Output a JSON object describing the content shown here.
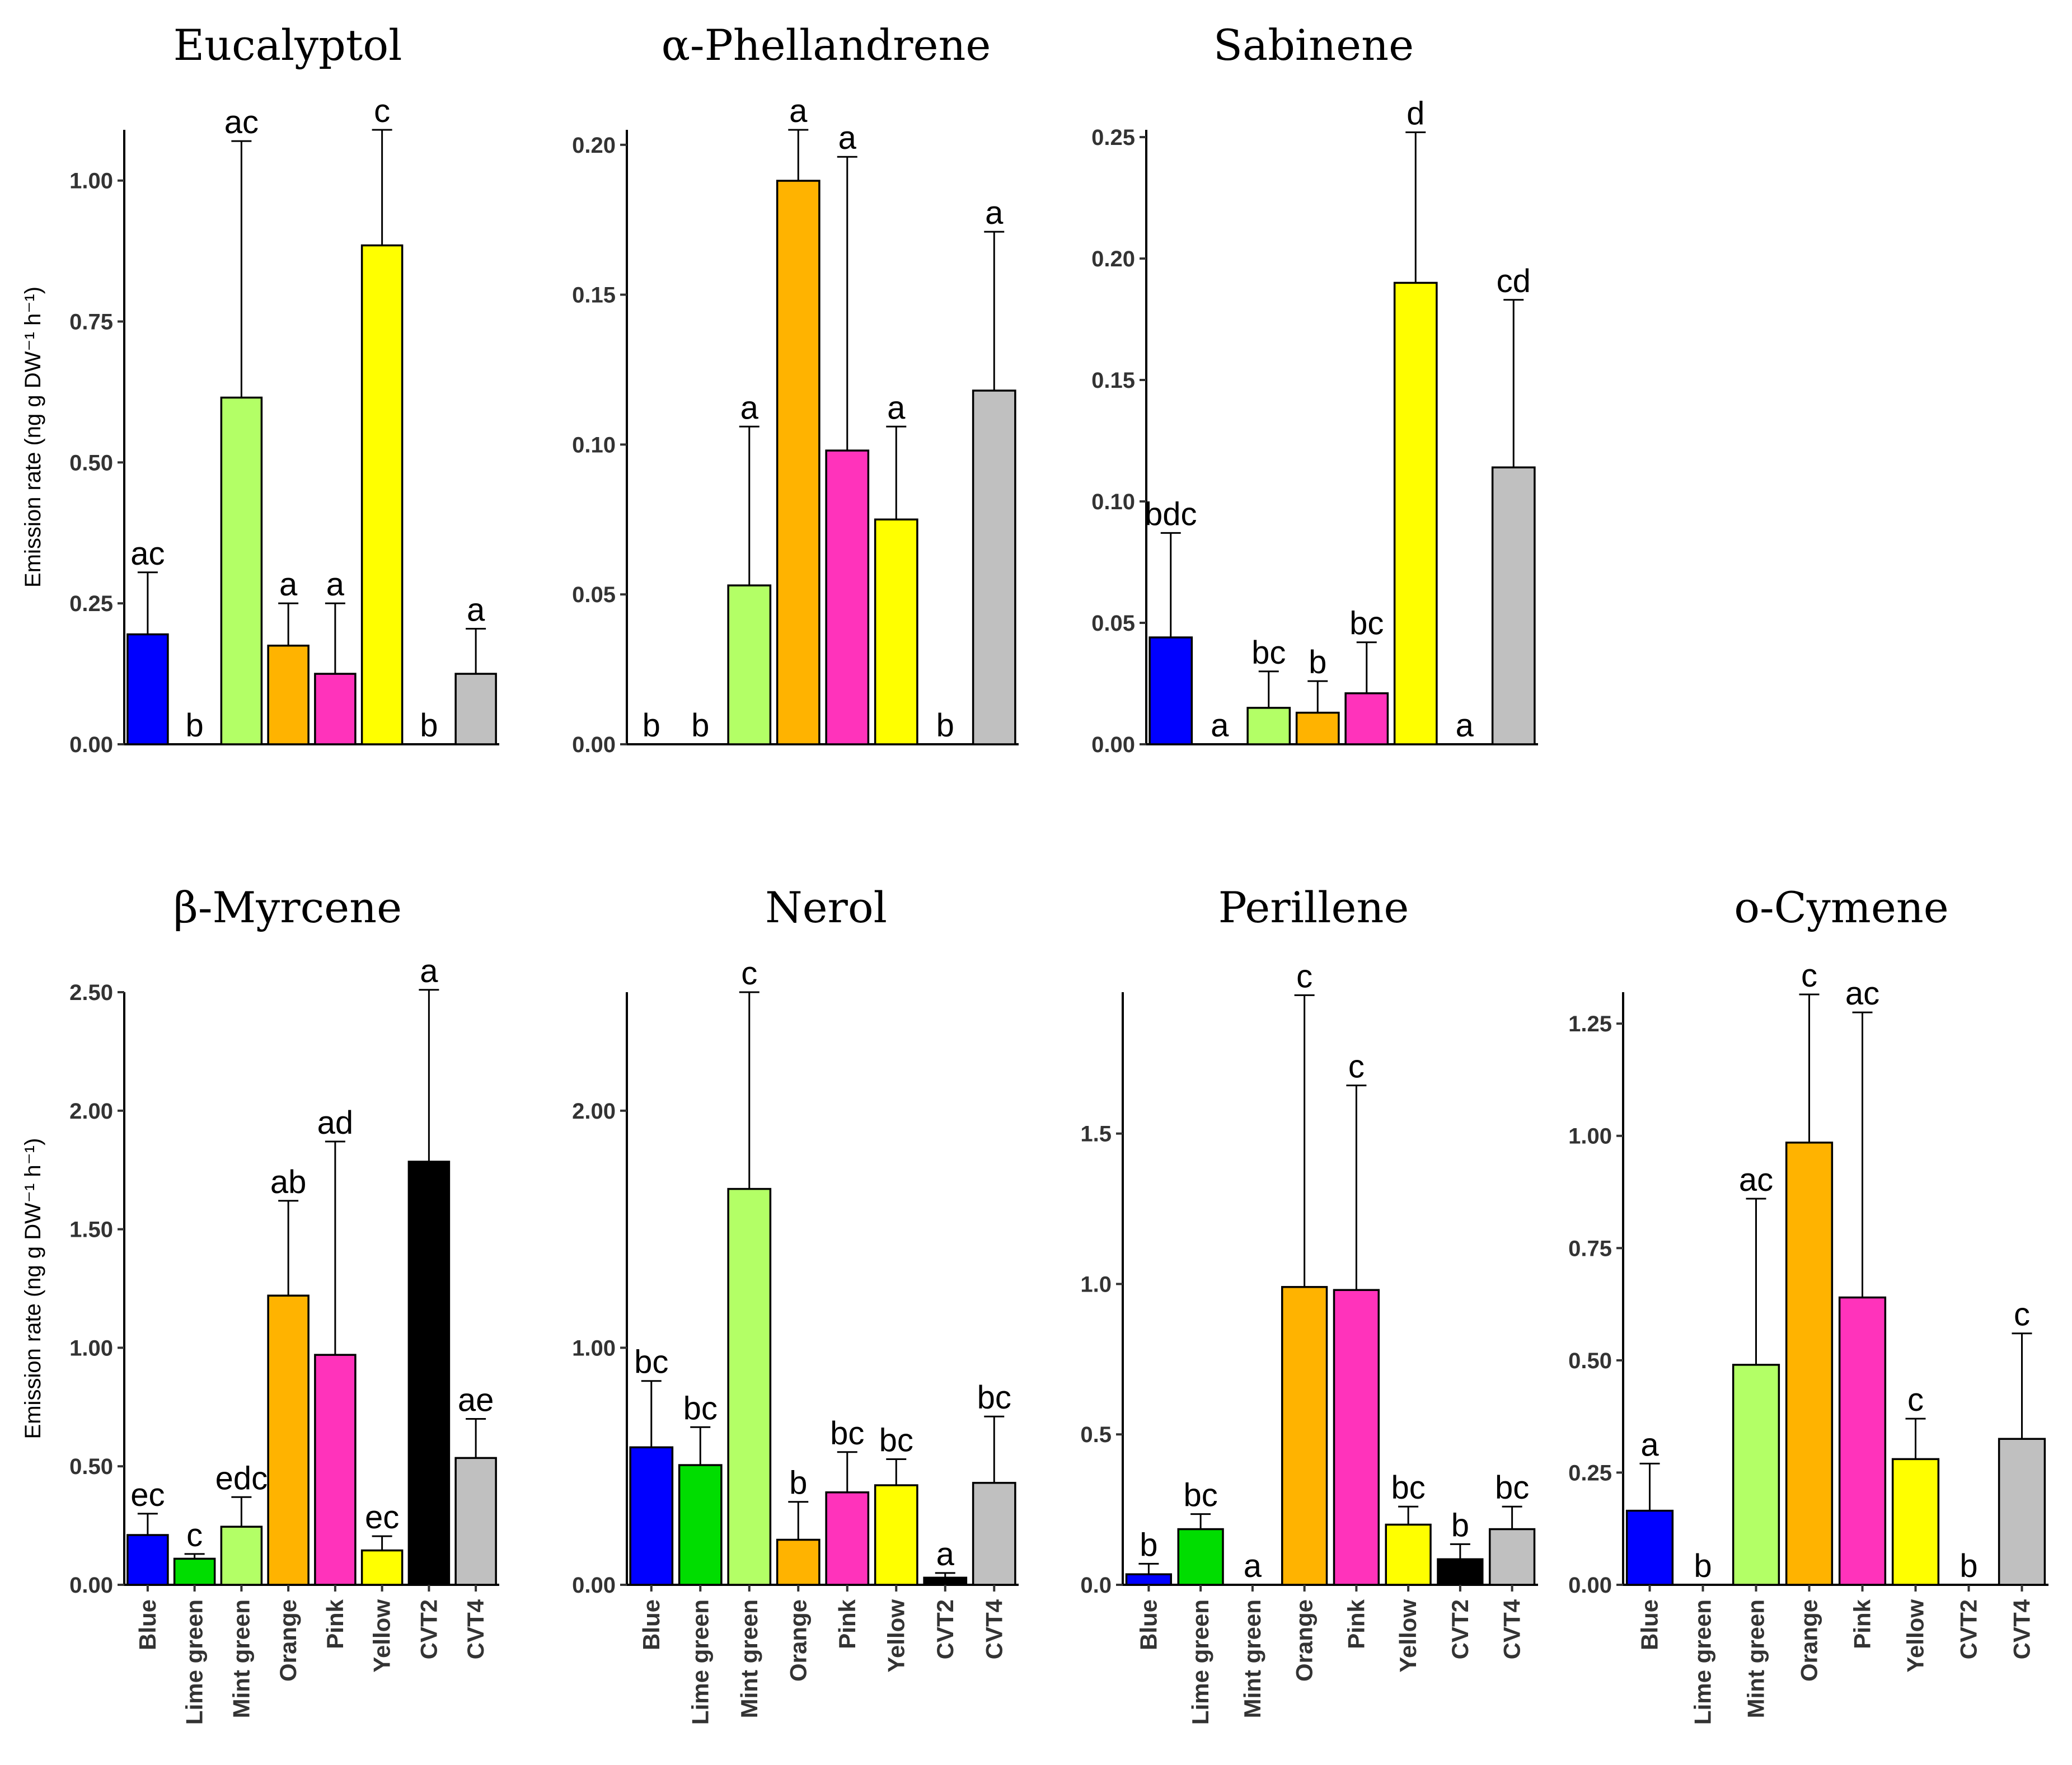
{
  "figure": {
    "ylabel": "Emission rate (ng g DW⁻¹ h⁻¹)",
    "categories": [
      "Blue",
      "Lime green",
      "Mint green",
      "Orange",
      "Pink",
      "Yellow",
      "CVT2",
      "CVT4"
    ],
    "colors": {
      "Blue": "#0000ff",
      "Lime green": "#00dd00",
      "Mint green": "#b3ff66",
      "Orange": "#ffb300",
      "Pink": "#ff33bb",
      "Yellow": "#ffff00",
      "CVT2": "#000000",
      "CVT4": "#c0c0c0"
    }
  },
  "chart_data": [
    {
      "type": "bar",
      "title": "Eucalyptol",
      "categories": [
        "Blue",
        "Lime green",
        "Mint green",
        "Orange",
        "Pink",
        "Yellow",
        "CVT2",
        "CVT4"
      ],
      "values": [
        0.195,
        0,
        0.615,
        0.175,
        0.125,
        0.885,
        0,
        0.125
      ],
      "errors": [
        0.11,
        0,
        0.455,
        0.075,
        0.125,
        0.205,
        0,
        0.08
      ],
      "letters": [
        "ac",
        "b",
        "ac",
        "a",
        "a",
        "c",
        "b",
        "a"
      ],
      "yticks": [
        0,
        0.25,
        0.5,
        0.75,
        1.0
      ],
      "ytick_labels": [
        "0.00",
        "0.25",
        "0.50",
        "0.75",
        "1.00"
      ],
      "ylim": [
        0,
        1.09
      ],
      "show_ylabel": true,
      "show_xlabels": false
    },
    {
      "type": "bar",
      "title": "α-Phellandrene",
      "categories": [
        "Blue",
        "Lime green",
        "Mint green",
        "Orange",
        "Pink",
        "Yellow",
        "CVT2",
        "CVT4"
      ],
      "values": [
        0,
        0,
        0.053,
        0.188,
        0.098,
        0.075,
        0,
        0.118
      ],
      "errors": [
        0,
        0,
        0.053,
        0.017,
        0.098,
        0.031,
        0,
        0.053
      ],
      "letters": [
        "b",
        "b",
        "a",
        "a",
        "a",
        "a",
        "b",
        "a"
      ],
      "yticks": [
        0,
        0.05,
        0.1,
        0.15,
        0.2
      ],
      "ytick_labels": [
        "0.00",
        "0.05",
        "0.10",
        "0.15",
        "0.20"
      ],
      "ylim": [
        0,
        0.205
      ],
      "show_ylabel": false,
      "show_xlabels": false
    },
    {
      "type": "bar",
      "title": "Sabinene",
      "categories": [
        "Blue",
        "Lime green",
        "Mint green",
        "Orange",
        "Pink",
        "Yellow",
        "CVT2",
        "CVT4"
      ],
      "values": [
        0.044,
        0,
        0.015,
        0.013,
        0.021,
        0.19,
        0,
        0.114
      ],
      "errors": [
        0.043,
        0,
        0.015,
        0.013,
        0.021,
        0.062,
        0,
        0.069
      ],
      "letters": [
        "bdc",
        "a",
        "bc",
        "b",
        "bc",
        "d",
        "a",
        "cd"
      ],
      "yticks": [
        0,
        0.05,
        0.1,
        0.15,
        0.2,
        0.25
      ],
      "ytick_labels": [
        "0.00",
        "0.05",
        "0.10",
        "0.15",
        "0.20",
        "0.25"
      ],
      "ylim": [
        0,
        0.253
      ],
      "show_ylabel": false,
      "show_xlabels": false
    },
    {
      "type": "bar",
      "title": "β-Myrcene",
      "categories": [
        "Blue",
        "Lime green",
        "Mint green",
        "Orange",
        "Pink",
        "Yellow",
        "CVT2",
        "CVT4"
      ],
      "values": [
        0.21,
        0.11,
        0.245,
        1.22,
        0.97,
        0.145,
        1.785,
        0.535
      ],
      "errors": [
        0.09,
        0.02,
        0.125,
        0.4,
        0.9,
        0.06,
        0.725,
        0.165
      ],
      "letters": [
        "ec",
        "c",
        "edc",
        "ab",
        "ad",
        "ec",
        "a",
        "ae"
      ],
      "yticks": [
        0,
        0.5,
        1.0,
        1.5,
        2.0,
        2.5
      ],
      "ytick_labels": [
        "0.00",
        "0.50",
        "1.00",
        "1.50",
        "2.00",
        "2.50"
      ],
      "ylim": [
        0,
        2.5
      ],
      "show_ylabel": true,
      "show_xlabels": true
    },
    {
      "type": "bar",
      "title": "Nerol",
      "categories": [
        "Blue",
        "Lime green",
        "Mint green",
        "Orange",
        "Pink",
        "Yellow",
        "CVT2",
        "CVT4"
      ],
      "values": [
        0.58,
        0.505,
        1.67,
        0.19,
        0.39,
        0.42,
        0.03,
        0.43
      ],
      "errors": [
        0.28,
        0.16,
        0.83,
        0.16,
        0.17,
        0.11,
        0.02,
        0.28
      ],
      "letters": [
        "bc",
        "bc",
        "c",
        "b",
        "bc",
        "bc",
        "a",
        "bc"
      ],
      "yticks": [
        0,
        1.0,
        2.0
      ],
      "ytick_labels": [
        "0.00",
        "1.00",
        "2.00"
      ],
      "ylim": [
        0,
        2.5
      ],
      "show_ylabel": false,
      "show_xlabels": true
    },
    {
      "type": "bar",
      "title": "Perillene",
      "categories": [
        "Blue",
        "Lime green",
        "Mint green",
        "Orange",
        "Pink",
        "Yellow",
        "CVT2",
        "CVT4"
      ],
      "values": [
        0.035,
        0.185,
        0,
        0.99,
        0.98,
        0.2,
        0.085,
        0.185
      ],
      "errors": [
        0.035,
        0.05,
        0,
        0.97,
        0.68,
        0.06,
        0.05,
        0.075
      ],
      "letters": [
        "b",
        "bc",
        "a",
        "c",
        "c",
        "bc",
        "b",
        "bc"
      ],
      "yticks": [
        0,
        0.5,
        1.0,
        1.5
      ],
      "ytick_labels": [
        "0.0",
        "0.5",
        "1.0",
        "1.5"
      ],
      "ylim": [
        0,
        1.97
      ],
      "show_ylabel": false,
      "show_xlabels": true
    },
    {
      "type": "bar",
      "title": "o-Cymene",
      "categories": [
        "Blue",
        "Lime green",
        "Mint green",
        "Orange",
        "Pink",
        "Yellow",
        "CVT2",
        "CVT4"
      ],
      "values": [
        0.165,
        0,
        0.49,
        0.985,
        0.64,
        0.28,
        0,
        0.325
      ],
      "errors": [
        0.105,
        0,
        0.37,
        0.33,
        0.635,
        0.09,
        0,
        0.235
      ],
      "letters": [
        "a",
        "b",
        "ac",
        "c",
        "ac",
        "c",
        "b",
        "c"
      ],
      "yticks": [
        0,
        0.25,
        0.5,
        0.75,
        1.0,
        1.25
      ],
      "ytick_labels": [
        "0.00",
        "0.25",
        "0.50",
        "0.75",
        "1.00",
        "1.25"
      ],
      "ylim": [
        0,
        1.32
      ],
      "show_ylabel": false,
      "show_xlabels": true
    }
  ]
}
